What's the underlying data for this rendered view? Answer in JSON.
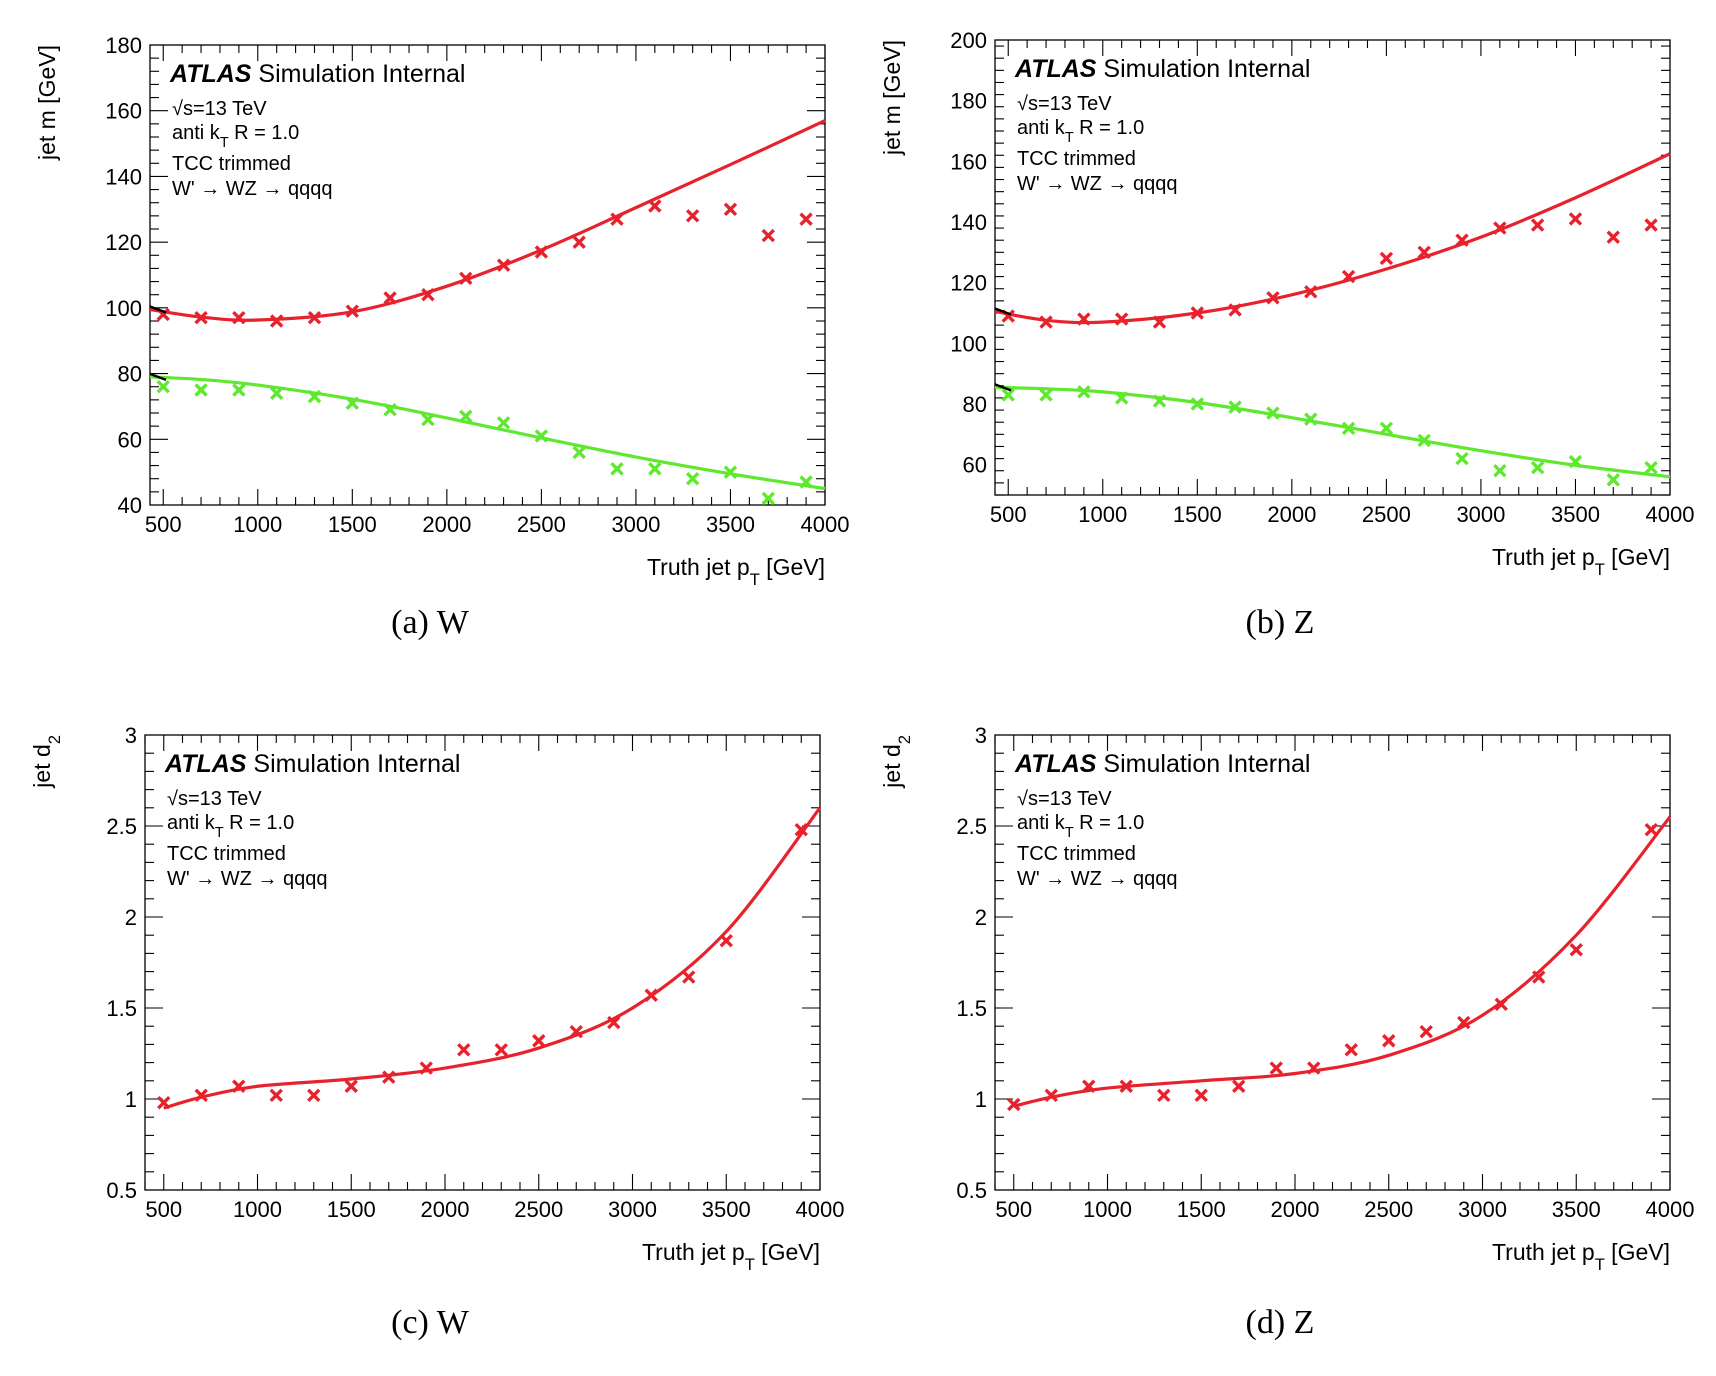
{
  "colors": {
    "signal_red": "#e8222c",
    "signal_green": "#5ee82e",
    "frame": "#000000"
  },
  "chart_data": [
    {
      "id": "a",
      "type": "scatter",
      "caption": "(a) W",
      "atlas": {
        "main": "ATLAS",
        "rest": "Simulation Internal"
      },
      "info": [
        "√s=13 TeV",
        "anti kT R = 1.0",
        "TCC trimmed",
        "W' → WZ → qqqq"
      ],
      "xlabel": "Truth jet pT [GeV]",
      "ylabel": "jet m [GeV]",
      "xlim": [
        430,
        4000
      ],
      "ylim": [
        40,
        180
      ],
      "xticks": [
        500,
        1000,
        1500,
        2000,
        2500,
        3000,
        3500,
        4000
      ],
      "yticks": [
        40,
        60,
        80,
        100,
        120,
        140,
        160,
        180
      ],
      "ytick_labels": [
        "40",
        "60",
        "80",
        "100",
        "120",
        "140",
        "160",
        "180"
      ],
      "series": [
        {
          "color": "#e8222c",
          "x": [
            500,
            700,
            900,
            1100,
            1300,
            1500,
            1700,
            1900,
            2100,
            2300,
            2500,
            2700,
            2900,
            3100,
            3300,
            3500,
            3700,
            3900
          ],
          "y": [
            98,
            97,
            97,
            96,
            97,
            99,
            103,
            104,
            109,
            113,
            117,
            120,
            127,
            131,
            128,
            130,
            122,
            127
          ],
          "fit": {
            "x": [
              430,
              700,
              1000,
              1500,
              2000,
              2500,
              3000,
              3500,
              4000
            ],
            "y": [
              99.5,
              97.2,
              96.3,
              98.8,
              106.6,
              117.6,
              130.5,
              143.6,
              157
            ]
          }
        },
        {
          "color": "#5ee82e",
          "x": [
            500,
            700,
            900,
            1100,
            1300,
            1500,
            1700,
            1900,
            2100,
            2300,
            2500,
            2700,
            2900,
            3100,
            3300,
            3500,
            3700,
            3900
          ],
          "y": [
            76,
            75,
            75,
            74,
            73,
            71,
            69,
            66,
            67,
            65,
            61,
            56,
            51,
            51,
            48,
            50,
            42,
            47
          ],
          "fit": {
            "x": [
              430,
              700,
              1000,
              1500,
              2000,
              2500,
              3000,
              3500,
              4000
            ],
            "y": [
              79,
              78.2,
              76.5,
              72.2,
              66.5,
              60.4,
              54.6,
              49.5,
              45
            ]
          }
        }
      ],
      "edge_marks": [
        {
          "x": 430,
          "y": 99.5
        },
        {
          "x": 430,
          "y": 79
        }
      ]
    },
    {
      "id": "b",
      "type": "scatter",
      "caption": "(b) Z",
      "atlas": {
        "main": "ATLAS",
        "rest": "Simulation Internal"
      },
      "info": [
        "√s=13 TeV",
        "anti kT R = 1.0",
        "TCC trimmed",
        "W' → WZ → qqqq"
      ],
      "xlabel": "Truth jet pT [GeV]",
      "ylabel": "jet m [GeV]",
      "xlim": [
        430,
        4000
      ],
      "ylim": [
        50,
        200
      ],
      "xticks": [
        500,
        1000,
        1500,
        2000,
        2500,
        3000,
        3500,
        4000
      ],
      "yticks": [
        60,
        80,
        100,
        120,
        140,
        160,
        180,
        200
      ],
      "ytick_labels": [
        "60",
        "80",
        "100",
        "120",
        "140",
        "160",
        "180",
        "200"
      ],
      "series": [
        {
          "color": "#e8222c",
          "x": [
            500,
            700,
            900,
            1100,
            1300,
            1500,
            1700,
            1900,
            2100,
            2300,
            2500,
            2700,
            2900,
            3100,
            3300,
            3500,
            3700,
            3900
          ],
          "y": [
            109,
            107,
            108,
            108,
            107,
            110,
            111,
            115,
            117,
            122,
            128,
            130,
            134,
            138,
            139,
            141,
            135,
            139
          ],
          "fit": {
            "x": [
              430,
              700,
              1000,
              1500,
              2000,
              2500,
              3000,
              3500,
              4000
            ],
            "y": [
              110.5,
              107.6,
              107,
              110,
              116,
              124.5,
              135,
              148,
              162.5
            ]
          }
        },
        {
          "color": "#5ee82e",
          "x": [
            500,
            700,
            900,
            1100,
            1300,
            1500,
            1700,
            1900,
            2100,
            2300,
            2500,
            2700,
            2900,
            3100,
            3300,
            3500,
            3700,
            3900
          ],
          "y": [
            83,
            83,
            84,
            82,
            81,
            80,
            79,
            77,
            75,
            72,
            72,
            68,
            62,
            58,
            59,
            61,
            55,
            59
          ],
          "fit": {
            "x": [
              430,
              700,
              1000,
              1500,
              2000,
              2500,
              3000,
              3500,
              4000
            ],
            "y": [
              85.5,
              85,
              84,
              80.5,
              75.5,
              70,
              64.6,
              59.8,
              56
            ]
          }
        }
      ],
      "edge_marks": [
        {
          "x": 430,
          "y": 110.5
        },
        {
          "x": 430,
          "y": 85.5
        }
      ]
    },
    {
      "id": "c",
      "type": "scatter",
      "caption": "(c) W",
      "atlas": {
        "main": "ATLAS",
        "rest": "Simulation Internal"
      },
      "info": [
        "√s=13 TeV",
        "anti kT R = 1.0",
        "TCC trimmed",
        "W' → WZ → qqqq"
      ],
      "xlabel": "Truth jet pT [GeV]",
      "ylabel": "jet d2",
      "xlim": [
        400,
        4000
      ],
      "ylim": [
        0.5,
        3
      ],
      "xticks": [
        500,
        1000,
        1500,
        2000,
        2500,
        3000,
        3500,
        4000
      ],
      "yticks": [
        0.5,
        1,
        1.5,
        2,
        2.5,
        3
      ],
      "ytick_labels": [
        "0.5",
        "1",
        "1.5",
        "2",
        "2.5",
        "3"
      ],
      "series": [
        {
          "color": "#e8222c",
          "x": [
            500,
            700,
            900,
            1100,
            1300,
            1500,
            1700,
            1900,
            2100,
            2300,
            2500,
            2700,
            2900,
            3100,
            3300,
            3500,
            3900
          ],
          "y": [
            0.98,
            1.02,
            1.07,
            1.02,
            1.02,
            1.07,
            1.12,
            1.17,
            1.27,
            1.27,
            1.32,
            1.37,
            1.42,
            1.57,
            1.67,
            1.87,
            2.48
          ],
          "fit": {
            "x": [
              500,
              700,
              1000,
              1500,
              2000,
              2500,
              3000,
              3500,
              4000
            ],
            "y": [
              0.95,
              1.01,
              1.07,
              1.11,
              1.17,
              1.28,
              1.5,
              1.92,
              2.6
            ]
          }
        }
      ],
      "edge_marks": []
    },
    {
      "id": "d",
      "type": "scatter",
      "caption": "(d) Z",
      "atlas": {
        "main": "ATLAS",
        "rest": "Simulation Internal"
      },
      "info": [
        "√s=13 TeV",
        "anti kT R = 1.0",
        "TCC trimmed",
        "W' → WZ → qqqq"
      ],
      "xlabel": "Truth jet pT [GeV]",
      "ylabel": "jet d2",
      "xlim": [
        400,
        4000
      ],
      "ylim": [
        0.5,
        3
      ],
      "xticks": [
        500,
        1000,
        1500,
        2000,
        2500,
        3000,
        3500,
        4000
      ],
      "yticks": [
        0.5,
        1,
        1.5,
        2,
        2.5,
        3
      ],
      "ytick_labels": [
        "0.5",
        "1",
        "1.5",
        "2",
        "2.5",
        "3"
      ],
      "series": [
        {
          "color": "#e8222c",
          "x": [
            500,
            700,
            900,
            1100,
            1300,
            1500,
            1700,
            1900,
            2100,
            2300,
            2500,
            2700,
            2900,
            3100,
            3300,
            3500,
            3900
          ],
          "y": [
            0.97,
            1.02,
            1.07,
            1.07,
            1.02,
            1.02,
            1.07,
            1.17,
            1.17,
            1.27,
            1.32,
            1.37,
            1.42,
            1.52,
            1.67,
            1.82,
            2.48
          ],
          "fit": {
            "x": [
              500,
              700,
              1000,
              1500,
              2000,
              2500,
              3000,
              3500,
              4000
            ],
            "y": [
              0.96,
              1.01,
              1.06,
              1.1,
              1.14,
              1.24,
              1.46,
              1.9,
              2.55
            ]
          }
        }
      ],
      "edge_marks": []
    }
  ]
}
